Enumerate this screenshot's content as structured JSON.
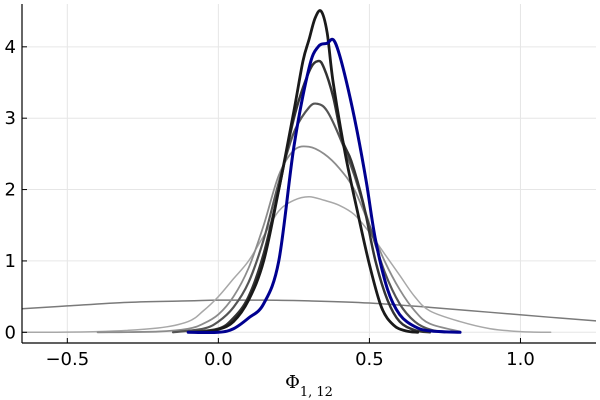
{
  "chart_data": {
    "type": "line",
    "title": "",
    "xlabel": "Φ",
    "xlabel_subscript": "1, 12",
    "ylabel": "",
    "xlim": [
      -0.65,
      1.25
    ],
    "ylim": [
      -0.15,
      4.6
    ],
    "grid": true,
    "legend": "none",
    "x_ticks": [
      -0.5,
      0.0,
      0.5,
      1.0
    ],
    "x_tick_labels": [
      "−0.5",
      "0.0",
      "0.5",
      "1.0"
    ],
    "y_ticks": [
      0,
      1,
      2,
      3,
      4
    ],
    "y_tick_labels": [
      "0",
      "1",
      "2",
      "3",
      "4"
    ],
    "series": [
      {
        "color": "#7a7a7a",
        "width": 1.5,
        "x": [
          -0.65,
          -0.5,
          -0.3,
          -0.1,
          0.0,
          0.15,
          0.3,
          0.5,
          0.7,
          0.9,
          1.1,
          1.25
        ],
        "y": [
          0.33,
          0.37,
          0.42,
          0.44,
          0.45,
          0.45,
          0.44,
          0.41,
          0.35,
          0.28,
          0.21,
          0.16
        ]
      },
      {
        "color": "#a8a8a8",
        "width": 1.5,
        "x": [
          -0.65,
          -0.4,
          -0.2,
          -0.1,
          -0.05,
          0.0,
          0.05,
          0.1,
          0.15,
          0.2,
          0.25,
          0.3,
          0.35,
          0.4,
          0.45,
          0.5,
          0.55,
          0.6,
          0.65,
          0.7,
          0.8,
          0.9,
          1.0,
          1.1
        ],
        "y": [
          0.0,
          0.01,
          0.06,
          0.15,
          0.3,
          0.5,
          0.75,
          1.0,
          1.35,
          1.7,
          1.85,
          1.9,
          1.85,
          1.78,
          1.65,
          1.4,
          1.1,
          0.8,
          0.5,
          0.3,
          0.15,
          0.05,
          0.01,
          0.0
        ]
      },
      {
        "color": "#8c8c8c",
        "width": 1.8,
        "x": [
          -0.4,
          -0.2,
          -0.1,
          -0.05,
          0.0,
          0.05,
          0.1,
          0.15,
          0.2,
          0.25,
          0.3,
          0.35,
          0.4,
          0.45,
          0.5,
          0.55,
          0.6,
          0.65,
          0.7,
          0.8
        ],
        "y": [
          0.0,
          0.01,
          0.05,
          0.12,
          0.25,
          0.5,
          0.9,
          1.5,
          2.2,
          2.55,
          2.6,
          2.5,
          2.3,
          2.0,
          1.5,
          1.0,
          0.6,
          0.3,
          0.12,
          0.01
        ]
      },
      {
        "color": "#555555",
        "width": 2.2,
        "x": [
          -0.15,
          -0.05,
          0.0,
          0.05,
          0.1,
          0.15,
          0.2,
          0.25,
          0.3,
          0.33,
          0.36,
          0.4,
          0.45,
          0.5,
          0.55,
          0.6,
          0.65,
          0.7,
          0.75
        ],
        "y": [
          0.0,
          0.05,
          0.15,
          0.35,
          0.7,
          1.3,
          2.1,
          2.8,
          3.15,
          3.2,
          3.1,
          2.75,
          2.2,
          1.5,
          0.85,
          0.4,
          0.15,
          0.04,
          0.0
        ]
      },
      {
        "color": "#333333",
        "width": 2.5,
        "x": [
          -0.1,
          0.0,
          0.05,
          0.1,
          0.15,
          0.2,
          0.25,
          0.3,
          0.33,
          0.35,
          0.38,
          0.41,
          0.44,
          0.48,
          0.52,
          0.56,
          0.6,
          0.65,
          0.7
        ],
        "y": [
          0.0,
          0.05,
          0.2,
          0.5,
          1.1,
          2.0,
          3.0,
          3.65,
          3.8,
          3.7,
          3.3,
          2.7,
          2.4,
          1.8,
          1.0,
          0.45,
          0.15,
          0.03,
          0.0
        ]
      },
      {
        "color": "#1a1a1a",
        "width": 2.8,
        "x": [
          -0.05,
          0.0,
          0.05,
          0.1,
          0.15,
          0.2,
          0.25,
          0.28,
          0.3,
          0.32,
          0.34,
          0.36,
          0.38,
          0.42,
          0.46,
          0.5,
          0.54,
          0.58,
          0.62,
          0.66
        ],
        "y": [
          0.0,
          0.04,
          0.15,
          0.45,
          1.0,
          2.0,
          3.1,
          3.8,
          4.1,
          4.4,
          4.5,
          4.2,
          3.5,
          2.5,
          1.7,
          0.95,
          0.35,
          0.1,
          0.02,
          0.0
        ]
      },
      {
        "color": "#000090",
        "width": 3.0,
        "x": [
          -0.1,
          0.0,
          0.05,
          0.1,
          0.15,
          0.2,
          0.25,
          0.3,
          0.33,
          0.36,
          0.38,
          0.4,
          0.43,
          0.46,
          0.49,
          0.52,
          0.56,
          0.6,
          0.65,
          0.7,
          0.8
        ],
        "y": [
          0.0,
          0.0,
          0.05,
          0.2,
          0.4,
          1.0,
          2.6,
          3.7,
          4.0,
          4.05,
          4.1,
          3.9,
          3.4,
          2.8,
          2.1,
          1.3,
          0.6,
          0.25,
          0.08,
          0.02,
          0.0
        ]
      }
    ]
  }
}
